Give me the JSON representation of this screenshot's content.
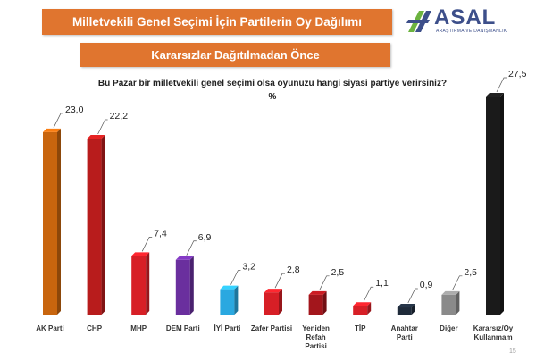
{
  "header": {
    "title": "Milletvekili Genel Seçimi İçin Partilerin Oy Dağılımı",
    "subtitle": "Kararsızlar Dağıtılmadan Önce"
  },
  "logo": {
    "text": "ASAL",
    "tagline": "ARAŞTIRMA VE DANIŞMANLIK"
  },
  "page_number": "15",
  "colors": {
    "banner": "#e0752f",
    "logo_blue": "#3d4f8a",
    "logo_green": "#6cb33f"
  },
  "chart_data": {
    "type": "bar",
    "title": "Bu Pazar bir milletvekili genel seçimi olsa oyunuzu hangi siyasi partiye verirsiniz?",
    "unit": "%",
    "categories": [
      "AK Parti",
      "CHP",
      "MHP",
      "DEM Parti",
      "İYİ Parti",
      "Zafer Partisi",
      "Yeniden Refah Partisi",
      "TİP",
      "Anahtar Parti",
      "Diğer",
      "Kararsız/Oy Kullanmam"
    ],
    "category_lines": [
      [
        "AK Parti"
      ],
      [
        "CHP"
      ],
      [
        "MHP"
      ],
      [
        "DEM Parti"
      ],
      [
        "İYİ Parti"
      ],
      [
        "Zafer Partisi"
      ],
      [
        "Yeniden",
        "Refah",
        "Partisi"
      ],
      [
        "TİP"
      ],
      [
        "Anahtar",
        "Parti"
      ],
      [
        "Diğer"
      ],
      [
        "Kararsız/Oy",
        "Kullanmam"
      ]
    ],
    "values": [
      23.0,
      22.2,
      7.4,
      6.9,
      3.2,
      2.8,
      2.5,
      1.1,
      0.9,
      2.5,
      27.5
    ],
    "value_labels": [
      "23,0",
      "22,2",
      "7,4",
      "6,9",
      "3,2",
      "2,8",
      "2,5",
      "1,1",
      "0,9",
      "2,5",
      "27,5"
    ],
    "colors": [
      "#c8650e",
      "#b81c1c",
      "#d71f26",
      "#6a2f9e",
      "#2aa8e0",
      "#d71f26",
      "#a3161c",
      "#d71f26",
      "#1f2b3a",
      "#8a8a8a",
      "#1a1a1a"
    ],
    "ylim": [
      0,
      30
    ],
    "grid": false,
    "legend": "none"
  }
}
